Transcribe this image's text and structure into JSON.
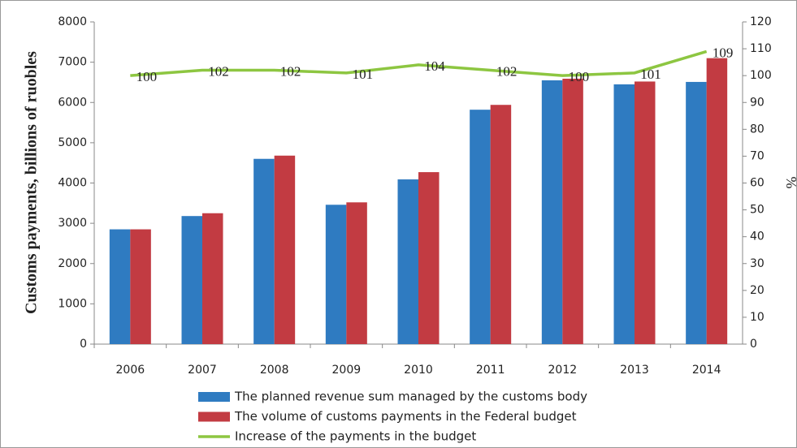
{
  "chart_data": {
    "type": "bar",
    "ylabel": "Customs payments, billions of ruobles",
    "y2label": "%",
    "categories": [
      "2006",
      "2007",
      "2008",
      "2009",
      "2010",
      "2011",
      "2012",
      "2013",
      "2014"
    ],
    "series": [
      {
        "name": "The planned revenue sum managed by the customs body",
        "type": "bar",
        "color": "#2f7bc1",
        "values": [
          2850,
          3180,
          4600,
          3460,
          4090,
          5820,
          6550,
          6450,
          6510
        ]
      },
      {
        "name": "The volume of customs payments in the Federal budget",
        "type": "bar",
        "color": "#c23b42",
        "values": [
          2850,
          3250,
          4680,
          3520,
          4270,
          5940,
          6590,
          6520,
          7100
        ]
      },
      {
        "name": "Increase of the payments in the budget",
        "type": "line",
        "color": "#8dc641",
        "axis": "y2",
        "show_labels": true,
        "values": [
          100,
          102,
          102,
          101,
          104,
          102,
          100,
          101,
          109
        ]
      }
    ],
    "ylim": [
      0,
      8000
    ],
    "yticks": [
      0,
      1000,
      2000,
      3000,
      4000,
      5000,
      6000,
      7000,
      8000
    ],
    "y2lim": [
      0,
      120
    ],
    "y2ticks": [
      0,
      10,
      20,
      30,
      40,
      50,
      60,
      70,
      80,
      90,
      100,
      110,
      120
    ],
    "grid": false
  }
}
